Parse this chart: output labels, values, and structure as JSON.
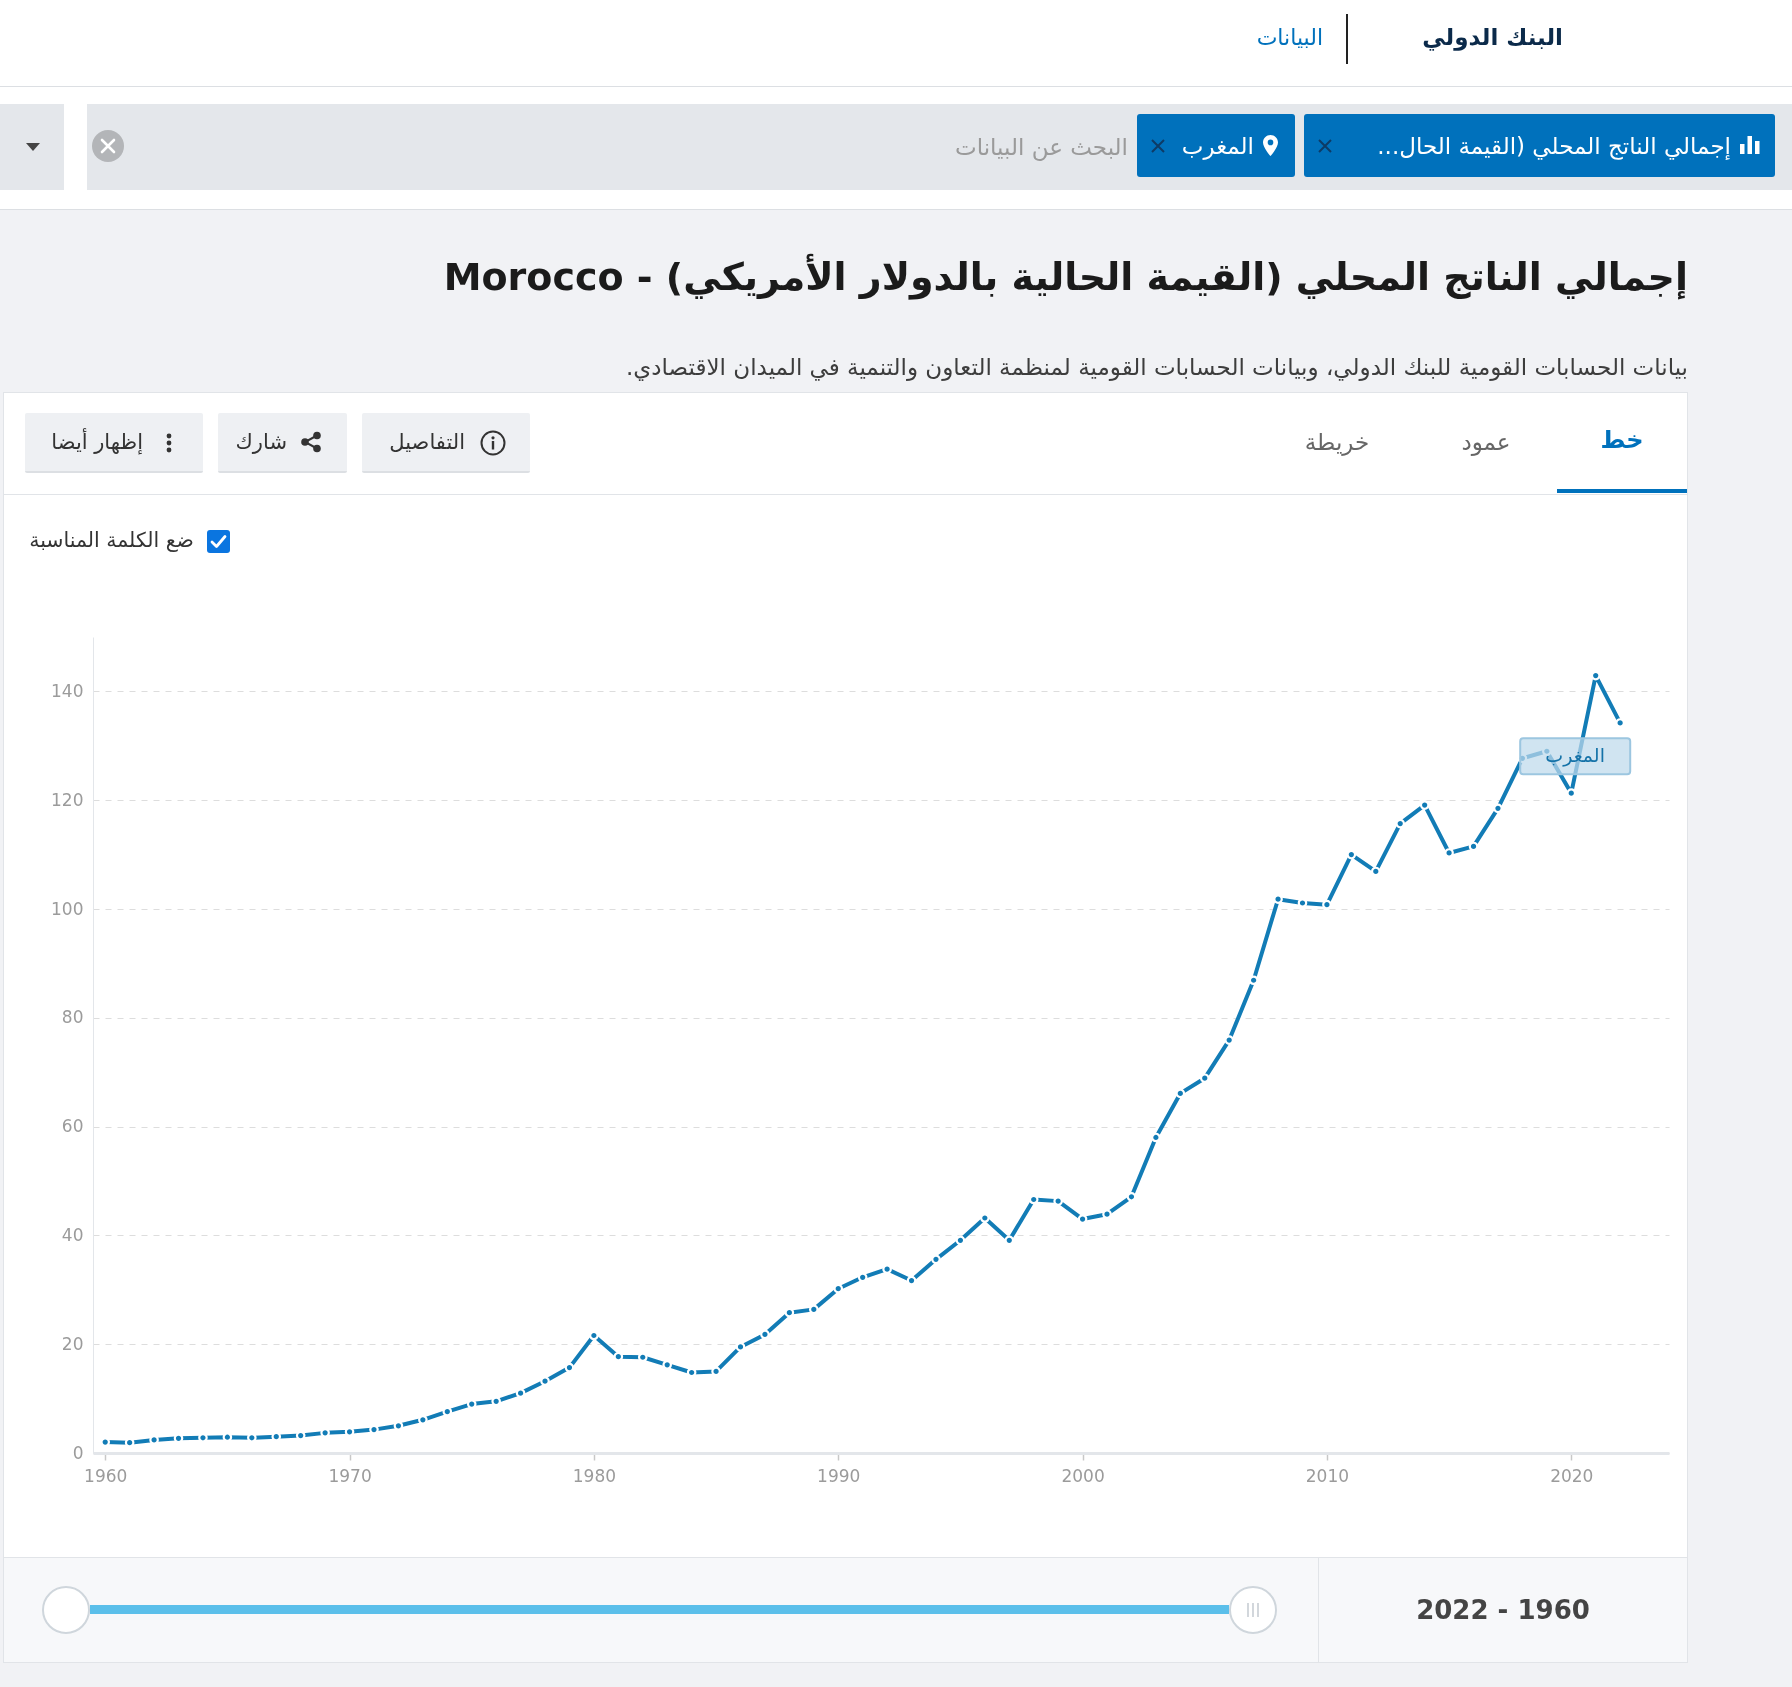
{
  "chart_data": {
    "type": "line",
    "title": "إجمالي الناتج المحلي (القيمة الحالية بالدولار الأمريكي) - Morocco",
    "subtitle": "بيانات الحسابات القومية للبنك الدولي، وبيانات الحسابات القومية لمنظمة التعاون والتنمية في الميدان الاقتصادي.",
    "x": [
      1960,
      1961,
      1962,
      1963,
      1964,
      1965,
      1966,
      1967,
      1968,
      1969,
      1970,
      1971,
      1972,
      1973,
      1974,
      1975,
      1976,
      1977,
      1978,
      1979,
      1980,
      1981,
      1982,
      1983,
      1984,
      1985,
      1986,
      1987,
      1988,
      1989,
      1990,
      1991,
      1992,
      1993,
      1994,
      1995,
      1996,
      1997,
      1998,
      1999,
      2000,
      2001,
      2002,
      2003,
      2004,
      2005,
      2006,
      2007,
      2008,
      2009,
      2010,
      2011,
      2012,
      2013,
      2014,
      2015,
      2016,
      2017,
      2018,
      2019,
      2020,
      2021,
      2022
    ],
    "series": [
      {
        "name": "المغرب",
        "color": "#127cb6",
        "values": [
          2.0,
          1.9,
          2.4,
          2.7,
          2.8,
          2.9,
          2.8,
          3.0,
          3.2,
          3.7,
          3.9,
          4.3,
          5.0,
          6.1,
          7.6,
          9.0,
          9.5,
          11.0,
          13.2,
          15.7,
          21.6,
          17.7,
          17.6,
          16.2,
          14.8,
          15.0,
          19.5,
          21.8,
          25.8,
          26.4,
          30.2,
          32.3,
          33.8,
          31.7,
          35.6,
          39.1,
          43.2,
          39.1,
          46.6,
          46.3,
          43.0,
          43.9,
          47.1,
          58.0,
          66.1,
          68.9,
          75.9,
          86.9,
          101.8,
          101.1,
          100.8,
          110.0,
          106.9,
          115.7,
          119.1,
          110.3,
          111.5,
          118.5,
          127.7,
          129.0,
          121.3,
          142.9,
          134.2
        ]
      }
    ],
    "xlim": [
      1959.5,
      2024
    ],
    "xticks": [
      1960,
      1970,
      1980,
      1990,
      2000,
      2010,
      2020
    ],
    "ylim": [
      0,
      150
    ],
    "yticks": [
      0,
      20,
      40,
      60,
      80,
      100,
      120,
      140
    ],
    "grid": "y",
    "marker": "circle",
    "line_style": "solid",
    "annotations": [
      "البنك الدولي",
      "البيانات",
      "إجمالي الناتج المحلي (القيمة الحال...",
      "المغرب",
      "البحث عن البيانات",
      "خط",
      "عمود",
      "خريطة",
      "التفاصيل",
      "شارك",
      "إظهار أيضا",
      "ضع الكلمة المناسبة",
      "2022 - 1960"
    ]
  }
}
